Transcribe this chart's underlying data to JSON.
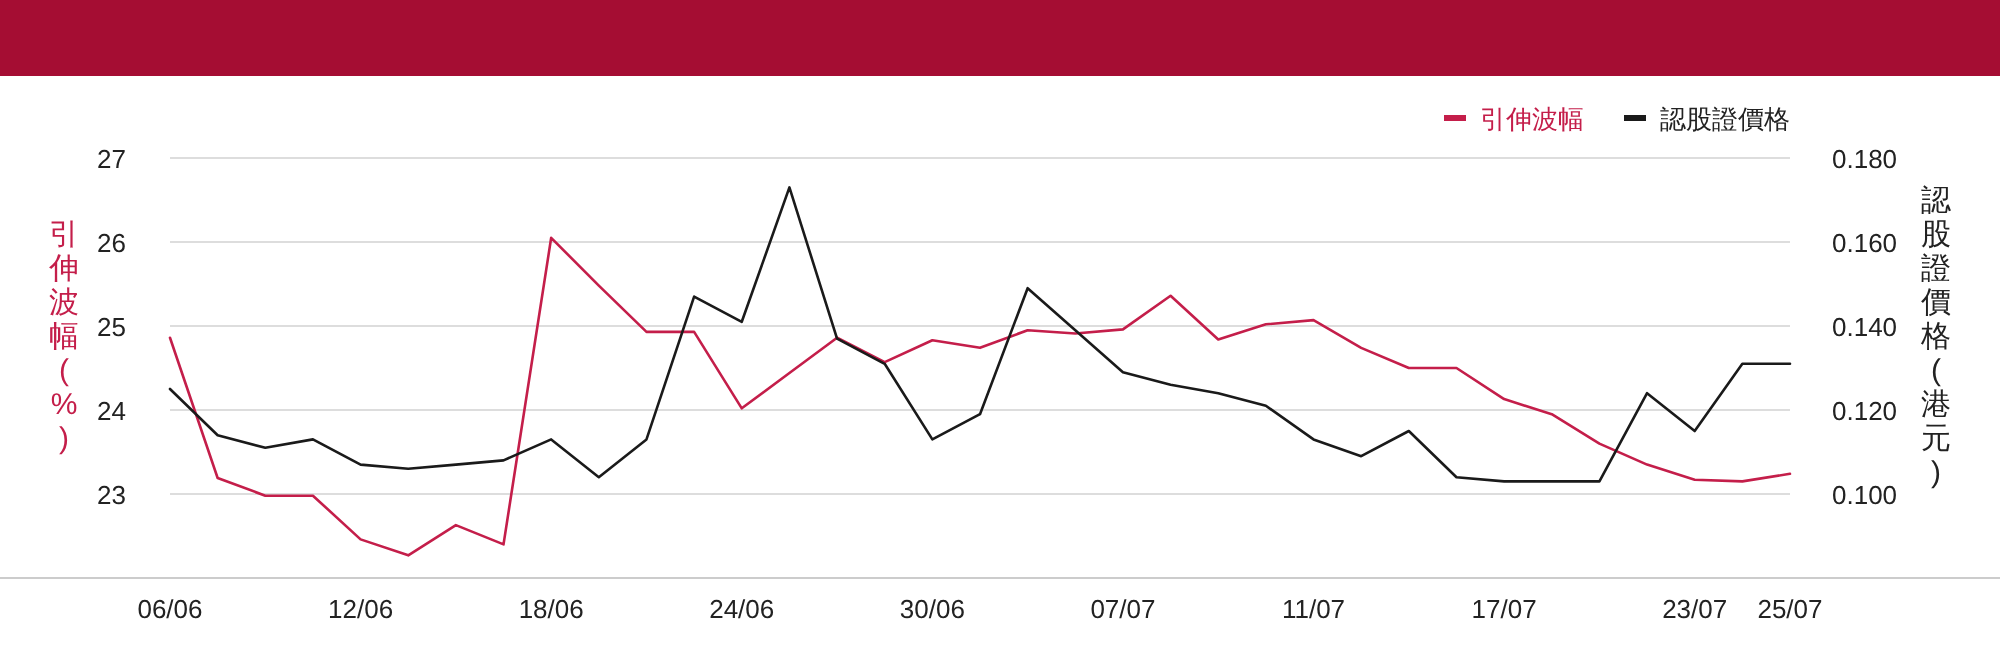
{
  "chart_data": {
    "type": "line",
    "categories": [
      "06/06",
      null,
      null,
      null,
      "12/06",
      null,
      null,
      null,
      "18/06",
      null,
      null,
      null,
      "24/06",
      null,
      null,
      null,
      "30/06",
      null,
      null,
      null,
      "07/07",
      null,
      null,
      null,
      "11/07",
      null,
      null,
      null,
      "17/07",
      null,
      null,
      null,
      "23/07",
      null,
      "25/07"
    ],
    "series": [
      {
        "name": "引伸波幅",
        "color": "#c41e4a",
        "values": [
          24.86,
          23.19,
          22.98,
          22.98,
          22.46,
          22.27,
          22.63,
          22.4,
          26.05,
          25.48,
          24.93,
          24.93,
          24.02,
          24.44,
          24.86,
          24.57,
          24.83,
          24.74,
          24.95,
          24.91,
          24.96,
          25.36,
          24.84,
          25.02,
          25.07,
          24.74,
          24.5,
          24.5,
          24.13,
          23.95,
          23.6,
          23.35,
          23.17,
          23.15,
          23.24
        ]
      },
      {
        "name": "認股證價格",
        "color": "#1a1a1a",
        "axis": "y2",
        "values": [
          0.125,
          0.114,
          0.111,
          0.113,
          0.107,
          0.106,
          0.107,
          0.108,
          0.113,
          0.104,
          0.113,
          0.147,
          0.141,
          0.173,
          0.137,
          0.131,
          0.113,
          0.119,
          0.149,
          0.139,
          0.129,
          0.126,
          0.124,
          0.121,
          0.113,
          0.109,
          0.115,
          0.104,
          0.103,
          0.103,
          0.103,
          0.124,
          0.115,
          0.131,
          0.131
        ]
      }
    ],
    "ylabel": "引伸波幅(%)",
    "y2label": "認股證價格(港元)",
    "ylim": [
      22,
      27
    ],
    "yticks": [
      23,
      24,
      25,
      26,
      27
    ],
    "y2lim": [
      0.08,
      0.18
    ],
    "y2ticks": [
      {
        "value": 0.1,
        "label": "0.100"
      },
      {
        "value": 0.12,
        "label": "0.120"
      },
      {
        "value": 0.14,
        "label": "0.140"
      },
      {
        "value": 0.16,
        "label": "0.160"
      },
      {
        "value": 0.18,
        "label": "0.180"
      }
    ],
    "grid": "y",
    "legend": "top right"
  }
}
